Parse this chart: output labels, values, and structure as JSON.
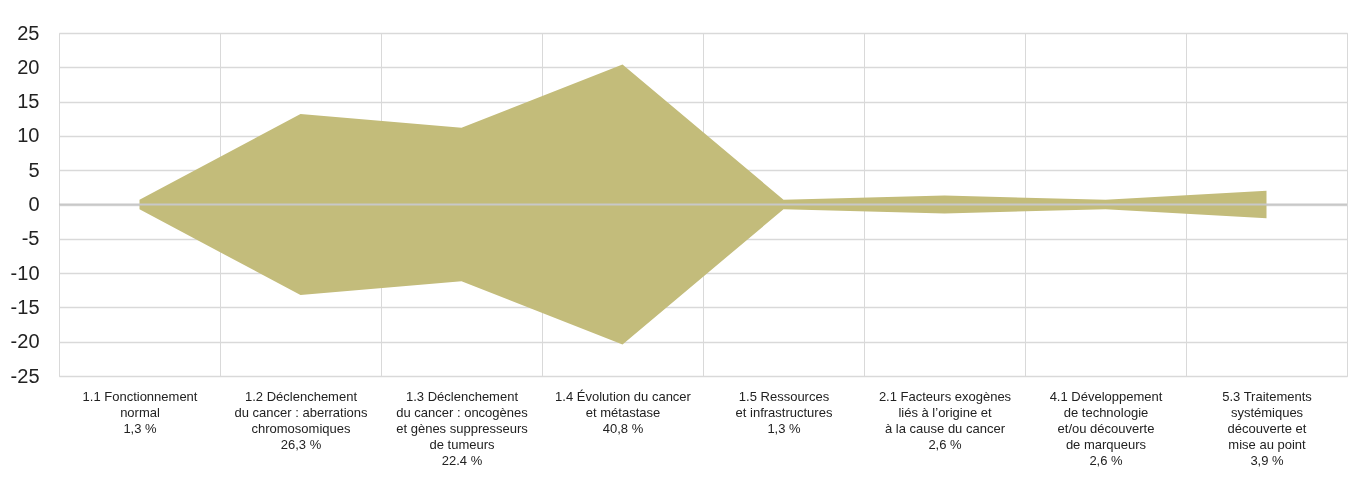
{
  "chart_data": {
    "type": "area",
    "categories": [
      "1.1 Fonctionnement\nnormal\n1,3 %",
      "1.2 Déclenchement\ndu cancer : aberrations\nchromosomiques\n26,3 %",
      "1.3 Déclenchement\ndu cancer : oncogènes\net gènes suppresseurs\nde tumeurs\n22.4 %",
      "1.4 Évolution du cancer\net métastase\n40,8 %",
      "1.5 Ressources\net infrastructures\n1,3 %",
      "2.1 Facteurs exogènes\nliés à l’origine et\nà la cause du cancer\n2,6 %",
      "4.1 Développement\nde technologie\net/ou découverte\nde marqueurs\n2,6 %",
      "5.3 Traitements\nsystémiques\ndécouverte et\nmise au point\n3,9 %"
    ],
    "series": [
      {
        "color": "#c3bc7a",
        "values": [
          0.7,
          13.2,
          11.2,
          20.4,
          0.7,
          1.3,
          0.7,
          2.0
        ]
      },
      {
        "color": "#c3bc7b",
        "values": [
          -0.7,
          -13.2,
          -11.2,
          -20.4,
          -0.7,
          -1.3,
          -0.7,
          -2.0
        ]
      }
    ],
    "ylim": [
      -25,
      25
    ],
    "yticks": [
      -25,
      -20,
      -15,
      -10,
      -5,
      0,
      5,
      10,
      15,
      20,
      25
    ],
    "grid": true,
    "ref_lines": [
      {
        "axis": "y",
        "value": 0,
        "color": "#c8c8c8"
      }
    ]
  }
}
